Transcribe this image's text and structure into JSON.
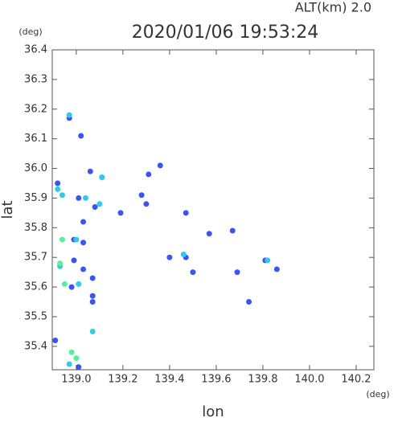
{
  "chart_data": {
    "type": "scatter",
    "title": "2020/01/06 19:53:24",
    "subtitle": "ALT(km) 2.0",
    "y_unit": "(deg)",
    "x_unit": "(deg)",
    "xlabel": "lon",
    "ylabel": "lat",
    "xlim": [
      138.897,
      140.276
    ],
    "ylim": [
      35.321,
      36.4
    ],
    "xticks": [
      {
        "value": 139,
        "label": "139.0"
      },
      139.2,
      139.4,
      139.6,
      139.8,
      {
        "value": 140,
        "label": "140.0"
      },
      140.2
    ],
    "yticks": [
      35.4,
      35.5,
      35.6,
      35.7,
      35.8,
      35.9,
      {
        "value": 36,
        "label": "36.0"
      },
      36.1,
      36.2,
      36.3,
      36.4
    ],
    "series": [
      {
        "color": "#3a55f0",
        "x": [
          139.02,
          138.97,
          138.92,
          139.06,
          139.11,
          139.01,
          139.03,
          138.99,
          139.03,
          138.99,
          139.03,
          139.07,
          138.98,
          139.07,
          139.07,
          138.91,
          139.01,
          139.28,
          139.3,
          139.47,
          139.4,
          139.47,
          139.57,
          139.67,
          139.81,
          139.86,
          139.74,
          139.69,
          139.36,
          139.31,
          139.19,
          139.08,
          139.5
        ],
        "values": [
          36.11,
          36.17,
          35.95,
          35.99,
          35.97,
          35.9,
          35.82,
          35.76,
          35.75,
          35.69,
          35.66,
          35.63,
          35.6,
          35.57,
          35.55,
          35.42,
          35.33,
          35.91,
          35.88,
          35.85,
          35.7,
          35.7,
          35.78,
          35.79,
          35.69,
          35.66,
          35.55,
          35.65,
          36.01,
          35.98,
          35.85,
          35.87,
          35.65
        ]
      },
      {
        "color": "#33c8f0",
        "x": [
          138.97,
          139.04,
          138.92,
          138.94,
          139.1,
          139.0,
          138.93,
          139.01,
          139.07,
          138.97,
          139.11,
          139.46,
          139.82
        ],
        "values": [
          36.18,
          35.9,
          35.93,
          35.91,
          35.88,
          35.76,
          35.67,
          35.61,
          35.45,
          35.34,
          35.97,
          35.71,
          35.69
        ]
      },
      {
        "color": "#55f09a",
        "x": [
          138.94,
          138.93,
          138.98,
          139.0,
          138.95
        ],
        "values": [
          35.76,
          35.68,
          35.38,
          35.36,
          35.61
        ]
      }
    ]
  }
}
